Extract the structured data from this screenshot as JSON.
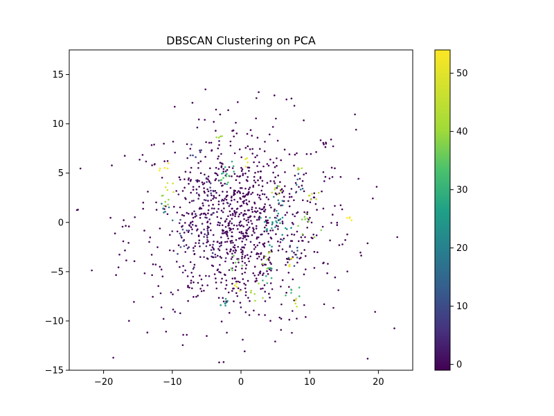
{
  "chart_data": {
    "type": "scatter",
    "title": "DBSCAN Clustering on PCA",
    "xlabel": "",
    "ylabel": "",
    "xlim": [
      -25,
      25
    ],
    "ylim": [
      -15,
      17.5
    ],
    "xticks": [
      -20,
      -10,
      0,
      10,
      20
    ],
    "yticks": [
      -15,
      -10,
      -5,
      0,
      5,
      10,
      15
    ],
    "grid": false,
    "colormap": "viridis",
    "colorbar": {
      "min": -1,
      "max": 54,
      "ticks": [
        0,
        10,
        20,
        30,
        40,
        50
      ]
    },
    "noise_label": -1,
    "clusters": [
      {
        "label": 0,
        "cx": -0.5,
        "cy": -0.5,
        "n": 320,
        "spread": 3.4
      },
      {
        "label": 3,
        "cx": -6.0,
        "cy": 0.0,
        "n": 40,
        "spread": 1.8
      },
      {
        "label": 5,
        "cx": -4.0,
        "cy": -2.8,
        "n": 18,
        "spread": 1.0
      },
      {
        "label": 7,
        "cx": -4.5,
        "cy": 3.0,
        "n": 14,
        "spread": 1.0
      },
      {
        "label": 9,
        "cx": -6.5,
        "cy": 7.5,
        "n": 6,
        "spread": 0.4
      },
      {
        "label": 10,
        "cx": -8.5,
        "cy": -1.5,
        "n": 10,
        "spread": 0.8
      },
      {
        "label": 12,
        "cx": 7.5,
        "cy": -3.5,
        "n": 8,
        "spread": 0.6
      },
      {
        "label": 15,
        "cx": 8.5,
        "cy": 4.0,
        "n": 6,
        "spread": 0.6
      },
      {
        "label": 18,
        "cx": -10.5,
        "cy": 1.2,
        "n": 6,
        "spread": 0.6
      },
      {
        "label": 20,
        "cx": 5.5,
        "cy": 2.0,
        "n": 8,
        "spread": 0.7
      },
      {
        "label": 22,
        "cx": 5.5,
        "cy": -0.5,
        "n": 12,
        "spread": 0.9
      },
      {
        "label": 24,
        "cx": -2.0,
        "cy": -8.3,
        "n": 6,
        "spread": 0.4
      },
      {
        "label": 26,
        "cx": 4.0,
        "cy": -0.3,
        "n": 14,
        "spread": 0.9
      },
      {
        "label": 28,
        "cx": -2.0,
        "cy": 5.3,
        "n": 8,
        "spread": 0.6
      },
      {
        "label": 30,
        "cx": 3.8,
        "cy": -5.3,
        "n": 7,
        "spread": 0.6
      },
      {
        "label": 32,
        "cx": 7.5,
        "cy": -6.8,
        "n": 6,
        "spread": 0.5
      },
      {
        "label": 34,
        "cx": -2.5,
        "cy": 4.2,
        "n": 6,
        "spread": 0.5
      },
      {
        "label": 36,
        "cx": -0.5,
        "cy": -4.5,
        "n": 6,
        "spread": 0.5
      },
      {
        "label": 38,
        "cx": 9.5,
        "cy": -0.2,
        "n": 10,
        "spread": 0.8
      },
      {
        "label": 39,
        "cx": -11.0,
        "cy": 2.2,
        "n": 6,
        "spread": 0.5
      },
      {
        "label": 40,
        "cx": -3.3,
        "cy": 8.7,
        "n": 4,
        "spread": 0.3
      },
      {
        "label": 41,
        "cx": 2.0,
        "cy": -7.5,
        "n": 6,
        "spread": 0.5
      },
      {
        "label": 42,
        "cx": 3.8,
        "cy": -3.5,
        "n": 6,
        "spread": 0.5
      },
      {
        "label": 43,
        "cx": 8.5,
        "cy": 5.2,
        "n": 4,
        "spread": 0.3
      },
      {
        "label": 44,
        "cx": 5.0,
        "cy": 3.5,
        "n": 6,
        "spread": 0.5
      },
      {
        "label": 45,
        "cx": 10.5,
        "cy": 2.8,
        "n": 6,
        "spread": 0.6
      },
      {
        "label": 47,
        "cx": 8.0,
        "cy": -7.8,
        "n": 4,
        "spread": 0.3
      },
      {
        "label": 48,
        "cx": -10.5,
        "cy": 3.5,
        "n": 5,
        "spread": 0.4
      },
      {
        "label": 50,
        "cx": 1.0,
        "cy": 5.7,
        "n": 4,
        "spread": 0.3
      },
      {
        "label": 51,
        "cx": 7.0,
        "cy": -4.3,
        "n": 5,
        "spread": 0.4
      },
      {
        "label": 52,
        "cx": -0.5,
        "cy": -6.2,
        "n": 4,
        "spread": 0.3
      },
      {
        "label": 53,
        "cx": -10.8,
        "cy": 5.5,
        "n": 5,
        "spread": 0.4
      },
      {
        "label": 54,
        "cx": 16.0,
        "cy": 0.3,
        "n": 4,
        "spread": 0.3
      }
    ],
    "noise": {
      "n": 700,
      "cx": 0.0,
      "cy": 0.0,
      "spread_x": 8.2,
      "spread_y": 5.4
    }
  }
}
